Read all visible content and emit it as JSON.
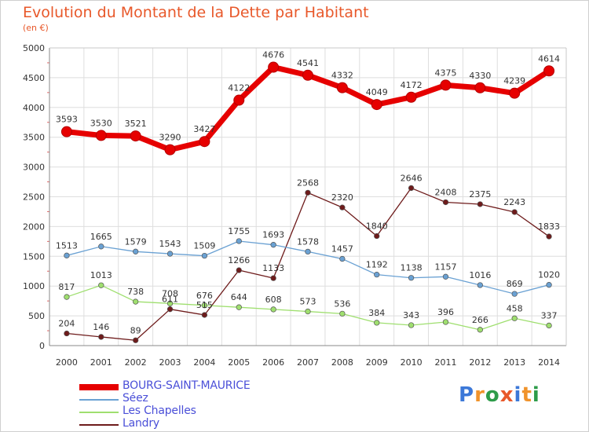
{
  "chart_data": {
    "type": "line",
    "title": "Evolution du Montant de la Dette par Habitant",
    "subtitle": "(en €)",
    "xlabel": "",
    "ylabel": "",
    "categories": [
      "2000",
      "2001",
      "2002",
      "2003",
      "2004",
      "2005",
      "2006",
      "2007",
      "2008",
      "2009",
      "2010",
      "2011",
      "2012",
      "2013",
      "2014"
    ],
    "ylim": [
      0,
      5000
    ],
    "yticks": [
      0,
      500,
      1000,
      1500,
      2000,
      2500,
      3000,
      3500,
      4000,
      4500,
      5000
    ],
    "grid": true,
    "legend_position": "bottom-left",
    "series": [
      {
        "name": "BOURG-SAINT-MAURICE",
        "color": "#e60000",
        "values": [
          3593,
          3530,
          3521,
          3290,
          3427,
          4122,
          4676,
          4541,
          4332,
          4049,
          4172,
          4375,
          4330,
          4239,
          4614
        ]
      },
      {
        "name": "Séez",
        "color": "#6aa1d3",
        "values": [
          1513,
          1665,
          1579,
          1543,
          1509,
          1755,
          1693,
          1578,
          1457,
          1192,
          1138,
          1157,
          1016,
          869,
          1020
        ]
      },
      {
        "name": "Les Chapelles",
        "color": "#9fdf6f",
        "values": [
          817,
          1013,
          738,
          708,
          676,
          644,
          608,
          573,
          536,
          384,
          343,
          396,
          266,
          458,
          337
        ]
      },
      {
        "name": "Landry",
        "color": "#6e1b1b",
        "values": [
          204,
          146,
          89,
          611,
          515,
          1266,
          1133,
          2568,
          2320,
          1840,
          2646,
          2408,
          2375,
          2243,
          1833
        ]
      }
    ]
  },
  "brand": {
    "letters": [
      "P",
      "r",
      "o",
      "x",
      "i",
      "t",
      "i"
    ],
    "colors": [
      "#3c78d8",
      "#f0932b",
      "#2e9c4a",
      "#e8582a",
      "#3c78d8",
      "#f0932b",
      "#2e9c4a"
    ]
  }
}
